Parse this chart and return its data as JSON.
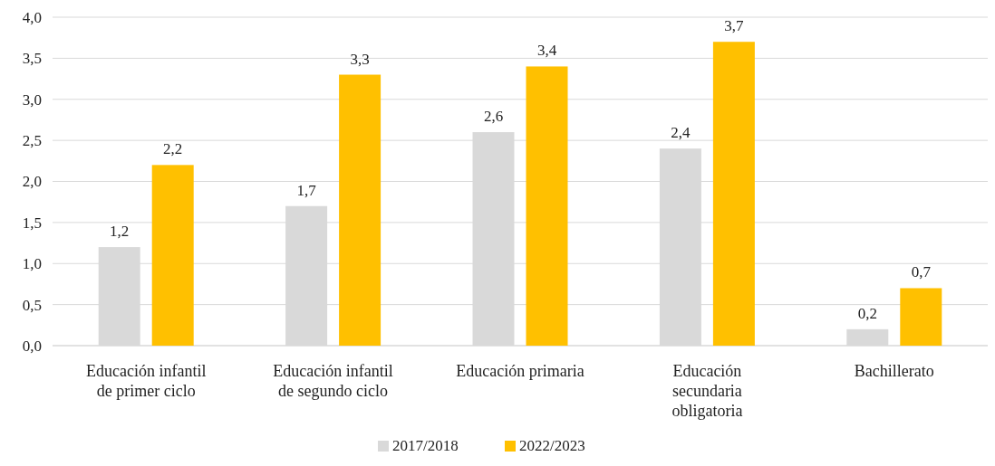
{
  "chart_data": {
    "type": "bar",
    "categories": [
      "Educación infantil de primer ciclo",
      "Educación infantil de segundo ciclo",
      "Educación primaria",
      "Educación secundaria obligatoria",
      "Bachillerato"
    ],
    "series": [
      {
        "name": "2017/2018",
        "color": "#d9d9d9",
        "values": [
          1.2,
          1.7,
          2.6,
          2.4,
          0.2
        ],
        "value_labels": [
          "1,2",
          "1,7",
          "2,6",
          "2,4",
          "0,2"
        ]
      },
      {
        "name": "2022/2023",
        "color": "#ffc000",
        "values": [
          2.2,
          3.3,
          3.4,
          3.7,
          0.7
        ],
        "value_labels": [
          "2,2",
          "3,3",
          "3,4",
          "3,7",
          "0,7"
        ]
      }
    ],
    "ylim": [
      0,
      4
    ],
    "yticks": [
      {
        "value": 0,
        "label": "0,0"
      },
      {
        "value": 0.5,
        "label": "0,5"
      },
      {
        "value": 1,
        "label": "1,0"
      },
      {
        "value": 1.5,
        "label": "1,5"
      },
      {
        "value": 2,
        "label": "2,0"
      },
      {
        "value": 2.5,
        "label": "2,5"
      },
      {
        "value": 3,
        "label": "3,0"
      },
      {
        "value": 3.5,
        "label": "3,5"
      },
      {
        "value": 4,
        "label": "4,0"
      }
    ],
    "grid": "y",
    "legend": "bottom"
  }
}
